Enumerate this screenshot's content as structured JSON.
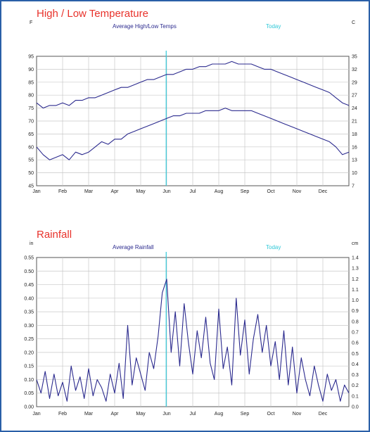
{
  "colors": {
    "title": "#e8322b",
    "series": "#2b2a8e",
    "today": "#30c8d8",
    "grid": "#c8c8c8",
    "border": "#2a5fa8"
  },
  "chart_data": [
    {
      "type": "line",
      "title": "High / Low Temperature",
      "legend": "Average High/Low Temps",
      "today_label": "Today",
      "left_unit": "F",
      "right_unit": "C",
      "months": [
        "Jan",
        "Feb",
        "Mar",
        "Apr",
        "May",
        "Jun",
        "Jul",
        "Aug",
        "Sep",
        "Oct",
        "Nov",
        "Dec"
      ],
      "ylim": [
        45,
        95
      ],
      "left_ticks": [
        95,
        90,
        85,
        80,
        75,
        70,
        65,
        60,
        55,
        50,
        45
      ],
      "right_ticks": [
        35,
        32,
        29,
        27,
        24,
        21,
        18,
        16,
        13,
        10,
        7
      ],
      "today_month_index": 4.98,
      "grid": true,
      "series": [
        {
          "name": "Average High",
          "x_month": [
            0,
            0.25,
            0.5,
            0.75,
            1,
            1.25,
            1.5,
            1.75,
            2,
            2.25,
            2.5,
            2.75,
            3,
            3.25,
            3.5,
            3.75,
            4,
            4.25,
            4.5,
            4.75,
            5,
            5.25,
            5.5,
            5.75,
            6,
            6.25,
            6.5,
            6.75,
            7,
            7.25,
            7.5,
            7.75,
            8,
            8.25,
            8.5,
            8.75,
            9,
            9.25,
            9.5,
            9.75,
            10,
            10.25,
            10.5,
            10.75,
            11,
            11.25,
            11.5,
            11.75,
            12
          ],
          "values": [
            77,
            75,
            76,
            76,
            77,
            76,
            78,
            78,
            79,
            79,
            80,
            81,
            82,
            83,
            83,
            84,
            85,
            86,
            86,
            87,
            88,
            88,
            89,
            90,
            90,
            91,
            91,
            92,
            92,
            92,
            93,
            92,
            92,
            92,
            91,
            90,
            90,
            89,
            88,
            87,
            86,
            85,
            84,
            83,
            82,
            81,
            79,
            77,
            76
          ]
        },
        {
          "name": "Average Low",
          "x_month": [
            0,
            0.25,
            0.5,
            0.75,
            1,
            1.25,
            1.5,
            1.75,
            2,
            2.25,
            2.5,
            2.75,
            3,
            3.25,
            3.5,
            3.75,
            4,
            4.25,
            4.5,
            4.75,
            5,
            5.25,
            5.5,
            5.75,
            6,
            6.25,
            6.5,
            6.75,
            7,
            7.25,
            7.5,
            7.75,
            8,
            8.25,
            8.5,
            8.75,
            9,
            9.25,
            9.5,
            9.75,
            10,
            10.25,
            10.5,
            10.75,
            11,
            11.25,
            11.5,
            11.75,
            12
          ],
          "values": [
            60,
            57,
            55,
            56,
            57,
            55,
            58,
            57,
            58,
            60,
            62,
            61,
            63,
            63,
            65,
            66,
            67,
            68,
            69,
            70,
            71,
            72,
            72,
            73,
            73,
            73,
            74,
            74,
            74,
            75,
            74,
            74,
            74,
            74,
            73,
            72,
            71,
            70,
            69,
            68,
            67,
            66,
            65,
            64,
            63,
            62,
            60,
            57,
            58
          ]
        }
      ]
    },
    {
      "type": "line",
      "title": "Rainfall",
      "legend": "Average Rainfall",
      "today_label": "Today",
      "left_unit": "in",
      "right_unit": "cm",
      "months": [
        "Jan",
        "Feb",
        "Mar",
        "Apr",
        "May",
        "Jun",
        "Jul",
        "Aug",
        "Sep",
        "Oct",
        "Nov",
        "Dec"
      ],
      "ylim": [
        0,
        0.55
      ],
      "left_ticks": [
        "0.55",
        "0.50",
        "0.45",
        "0.40",
        "0.35",
        "0.30",
        "0.25",
        "0.20",
        "0.15",
        "0.10",
        "0.05",
        "0.00"
      ],
      "right_ticks": [
        "1.4",
        "1.3",
        "1.2",
        "1.1",
        "1.0",
        "0.9",
        "0.8",
        "0.7",
        "0.6",
        "0.5",
        "0.4",
        "0.3",
        "0.2",
        "0.1",
        "0.0"
      ],
      "today_month_index": 4.98,
      "grid": true,
      "series": [
        {
          "name": "Average Rainfall",
          "x_month": [
            0,
            0.17,
            0.33,
            0.5,
            0.67,
            0.83,
            1,
            1.17,
            1.33,
            1.5,
            1.67,
            1.83,
            2,
            2.17,
            2.33,
            2.5,
            2.67,
            2.83,
            3,
            3.17,
            3.33,
            3.5,
            3.67,
            3.83,
            4,
            4.17,
            4.33,
            4.5,
            4.67,
            4.83,
            5,
            5.17,
            5.33,
            5.5,
            5.67,
            5.83,
            6,
            6.17,
            6.33,
            6.5,
            6.67,
            6.83,
            7,
            7.17,
            7.33,
            7.5,
            7.67,
            7.83,
            8,
            8.17,
            8.33,
            8.5,
            8.67,
            8.83,
            9,
            9.17,
            9.33,
            9.5,
            9.67,
            9.83,
            10,
            10.17,
            10.33,
            10.5,
            10.67,
            10.83,
            11,
            11.17,
            11.33,
            11.5,
            11.67,
            11.83,
            12
          ],
          "values": [
            0.1,
            0.05,
            0.13,
            0.03,
            0.12,
            0.04,
            0.09,
            0.02,
            0.15,
            0.06,
            0.11,
            0.03,
            0.14,
            0.04,
            0.1,
            0.07,
            0.02,
            0.12,
            0.05,
            0.16,
            0.03,
            0.3,
            0.08,
            0.18,
            0.12,
            0.06,
            0.2,
            0.14,
            0.26,
            0.42,
            0.47,
            0.2,
            0.35,
            0.15,
            0.38,
            0.24,
            0.12,
            0.28,
            0.18,
            0.33,
            0.16,
            0.1,
            0.36,
            0.14,
            0.22,
            0.08,
            0.4,
            0.19,
            0.32,
            0.12,
            0.25,
            0.34,
            0.2,
            0.3,
            0.15,
            0.24,
            0.1,
            0.28,
            0.08,
            0.22,
            0.05,
            0.18,
            0.1,
            0.04,
            0.15,
            0.08,
            0.02,
            0.12,
            0.06,
            0.1,
            0.02,
            0.08,
            0.05
          ]
        }
      ]
    }
  ]
}
